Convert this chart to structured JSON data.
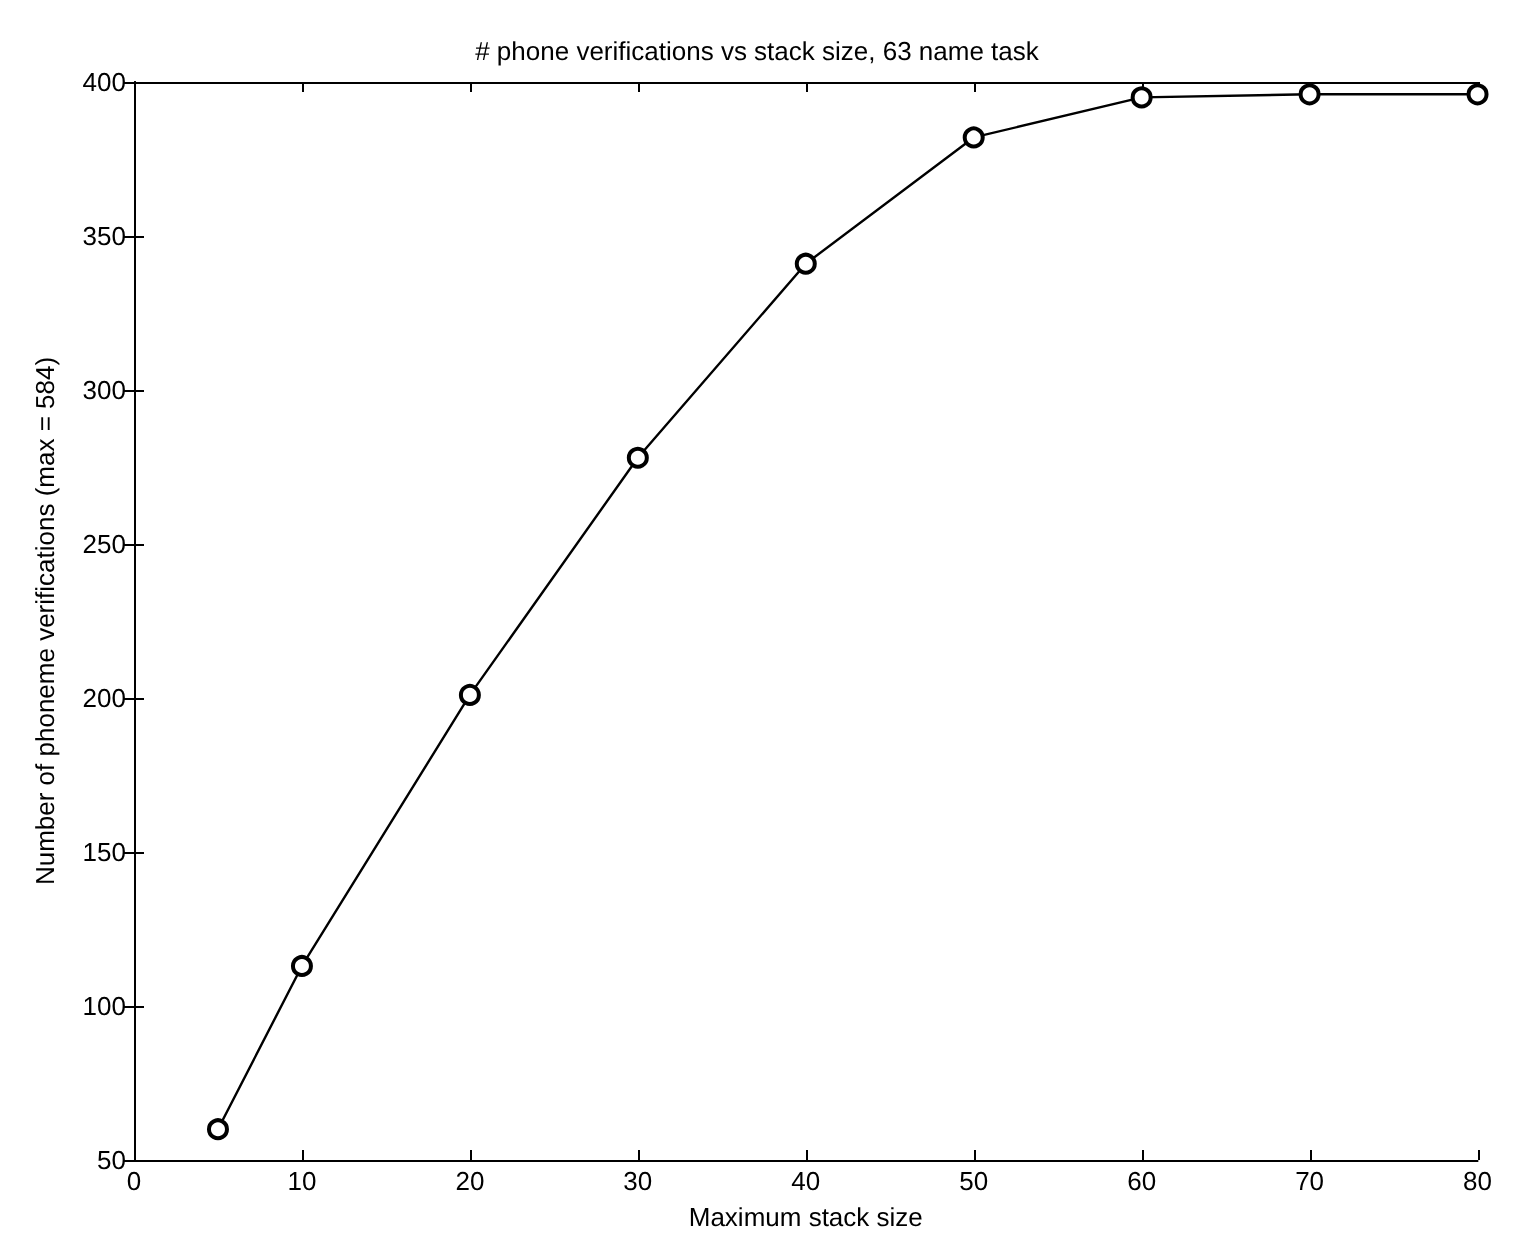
{
  "chart_data": {
    "type": "line",
    "title": "# phone verifications vs stack size, 63 name task",
    "xlabel": "Maximum stack size",
    "ylabel": "Number of phoneme verifications (max = 584)",
    "x": [
      5,
      10,
      20,
      30,
      40,
      50,
      60,
      70,
      80
    ],
    "series": [
      {
        "color": "#000000",
        "values": [
          60,
          113,
          201,
          278,
          341,
          382,
          395,
          396,
          396
        ]
      }
    ],
    "xlim": [
      0,
      80
    ],
    "xticks": [
      0,
      10,
      20,
      30,
      40,
      50,
      60,
      70,
      80
    ],
    "ylim": [
      50,
      400
    ],
    "yticks": [
      50,
      100,
      150,
      200,
      250,
      300,
      350,
      400
    ],
    "grid": false,
    "marker": "circle",
    "line_style": "solid"
  }
}
